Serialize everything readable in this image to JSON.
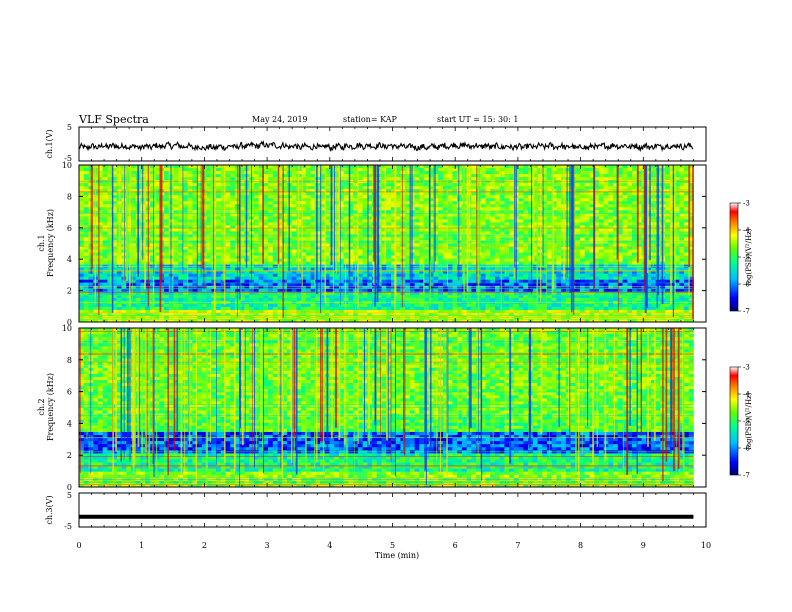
{
  "header": {
    "title": "VLF Spectra",
    "date": "May 24, 2019",
    "station": "station= KAP",
    "start": "start  UT  =   15: 30: 1"
  },
  "colors": {
    "trace": "#000000",
    "colormap": [
      "#00008f",
      "#0000ff",
      "#00bfff",
      "#00ff80",
      "#80ff00",
      "#ffff00",
      "#ff8000",
      "#ff0000",
      "#c00000"
    ]
  },
  "chart_data": [
    {
      "type": "line",
      "panel": "ch1-waveform",
      "ylabel": "ch.1(V)",
      "ylim": [
        -5,
        5
      ],
      "yticks": [
        "5",
        "-5"
      ],
      "x_range": [
        0,
        10
      ],
      "description_level": "noisy signal fluctuating between about -2.5 and 1.5 V",
      "x": [
        0,
        0.5,
        1,
        1.5,
        2,
        2.5,
        3,
        3.5,
        4,
        4.5,
        5,
        5.5,
        6,
        6.5,
        7,
        7.5,
        8,
        8.5,
        9,
        9.5,
        9.8
      ],
      "y": [
        -1.0,
        -0.6,
        -0.9,
        -0.4,
        -1.1,
        -0.7,
        -0.3,
        -0.8,
        -0.9,
        -0.5,
        -0.6,
        -1.0,
        -0.4,
        -0.7,
        -0.9,
        -0.6,
        -1.0,
        -0.5,
        -0.8,
        -0.6,
        -0.7
      ]
    },
    {
      "type": "heatmap",
      "panel": "ch1-spectrogram",
      "ylabel_line1": "ch.1",
      "ylabel_line2": "Frequency (kHz)",
      "ylim": [
        0,
        10
      ],
      "yticks": [
        "0",
        "2",
        "4",
        "6",
        "8",
        "10"
      ],
      "x_range": [
        0,
        9.8
      ],
      "colorbar": {
        "label": "log(PSD)(V²/Hz)",
        "range": [
          -7,
          -3
        ],
        "ticks": [
          "-3",
          "-4",
          "-5",
          "-6",
          "-7"
        ]
      }
    },
    {
      "type": "heatmap",
      "panel": "ch2-spectrogram",
      "ylabel_line1": "ch.2",
      "ylabel_line2": "Frequency (kHz)",
      "ylim": [
        0,
        10
      ],
      "yticks": [
        "0",
        "2",
        "4",
        "6",
        "8",
        "10"
      ],
      "x_range": [
        0,
        9.8
      ],
      "colorbar": {
        "label": "log(PSD)(V²/Hz)",
        "range": [
          -7,
          -3
        ],
        "ticks": [
          "-3",
          "-4",
          "-5",
          "-6",
          "-7"
        ]
      }
    },
    {
      "type": "line",
      "panel": "ch3-waveform",
      "ylabel": "ch.3(V)",
      "ylim": [
        -5,
        5
      ],
      "yticks": [
        "5",
        "-5"
      ],
      "x": [
        0,
        9.8
      ],
      "y": [
        -2,
        -2
      ]
    }
  ],
  "xaxis": {
    "label": "Time (min)",
    "ticks": [
      "0",
      "1",
      "2",
      "3",
      "4",
      "5",
      "6",
      "7",
      "8",
      "9",
      "10"
    ],
    "range": [
      0,
      10
    ]
  }
}
